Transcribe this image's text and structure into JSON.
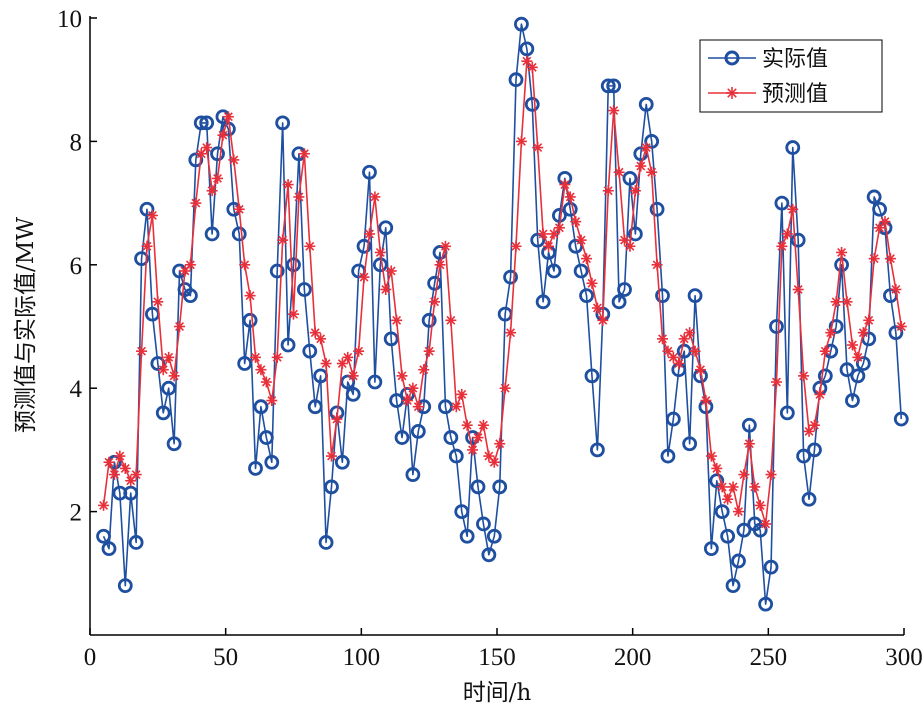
{
  "chart_data": {
    "type": "line",
    "xlabel": "时间/h",
    "ylabel": "预测值与实际值/MW",
    "xlim": [
      0,
      300
    ],
    "ylim": [
      0,
      10
    ],
    "xticks": [
      0,
      50,
      100,
      150,
      200,
      250,
      300
    ],
    "yticks": [
      2,
      4,
      6,
      8,
      10
    ],
    "grid": false,
    "legend_position": "top-right",
    "colors": {
      "actual": "#1f4fa0",
      "predicted": "#e8303a",
      "axis": "#000000"
    },
    "series": [
      {
        "name": "实际值",
        "marker": "circle",
        "x": [
          5,
          7,
          9,
          11,
          13,
          15,
          17,
          19,
          21,
          23,
          25,
          27,
          29,
          31,
          33,
          35,
          37,
          39,
          41,
          43,
          45,
          47,
          49,
          51,
          53,
          55,
          57,
          59,
          61,
          63,
          65,
          67,
          69,
          71,
          73,
          75,
          77,
          79,
          81,
          83,
          85,
          87,
          89,
          91,
          93,
          95,
          97,
          99,
          101,
          103,
          105,
          107,
          109,
          111,
          113,
          115,
          117,
          119,
          121,
          123,
          125,
          127,
          129,
          131,
          133,
          135,
          137,
          139,
          141,
          143,
          145,
          147,
          149,
          151,
          153,
          155,
          157,
          159,
          161,
          163,
          165,
          167,
          169,
          171,
          173,
          175,
          177,
          179,
          181,
          183,
          185,
          187,
          189,
          191,
          193,
          195,
          197,
          199,
          201,
          203,
          205,
          207,
          209,
          211,
          213,
          215,
          217,
          219,
          221,
          223,
          225,
          227,
          229,
          231,
          233,
          235,
          237,
          239,
          241,
          243,
          245,
          247,
          249,
          251,
          253,
          255,
          257,
          259,
          261,
          263,
          265,
          267,
          269,
          271,
          273,
          275,
          277,
          279,
          281,
          283,
          285,
          287,
          289,
          291,
          293,
          295,
          297,
          299
        ],
        "y": [
          1.6,
          1.4,
          2.8,
          2.3,
          0.8,
          2.3,
          1.5,
          6.1,
          6.9,
          5.2,
          4.4,
          3.6,
          4.0,
          3.1,
          5.9,
          5.6,
          5.5,
          7.7,
          8.3,
          8.3,
          6.5,
          7.8,
          8.4,
          8.2,
          6.9,
          6.5,
          4.4,
          5.1,
          2.7,
          3.7,
          3.2,
          2.8,
          5.9,
          8.3,
          4.7,
          6.0,
          7.8,
          5.6,
          4.6,
          3.7,
          4.2,
          1.5,
          2.4,
          3.6,
          2.8,
          4.1,
          3.9,
          5.9,
          6.3,
          7.5,
          4.1,
          6.0,
          6.6,
          4.8,
          3.8,
          3.2,
          3.9,
          2.6,
          3.3,
          3.7,
          5.1,
          5.7,
          6.2,
          3.7,
          3.2,
          2.9,
          2.0,
          1.6,
          3.2,
          2.4,
          1.8,
          1.3,
          1.6,
          2.4,
          5.2,
          5.8,
          9.0,
          9.9,
          9.5,
          8.6,
          6.4,
          5.4,
          6.2,
          5.9,
          6.8,
          7.4,
          6.9,
          6.3,
          5.9,
          5.5,
          4.2,
          3.0,
          5.2,
          8.9,
          8.9,
          5.4,
          5.6,
          7.4,
          6.5,
          7.8,
          8.6,
          8.0,
          6.9,
          5.5,
          2.9,
          3.5,
          4.3,
          4.6,
          3.1,
          5.5,
          4.2,
          3.7,
          1.4,
          2.5,
          2.0,
          1.6,
          0.8,
          1.2,
          1.7,
          3.4,
          1.8,
          1.7,
          0.5,
          1.1,
          5.0,
          7.0,
          3.6,
          7.9,
          6.4,
          2.9,
          2.2,
          3.0,
          4.0,
          4.2,
          4.6,
          5.0,
          6.0,
          4.3,
          3.8,
          4.2,
          4.4,
          4.8,
          7.1,
          6.9,
          6.6,
          5.5,
          4.9,
          3.5
        ]
      },
      {
        "name": "预测值",
        "marker": "asterisk",
        "x": [
          5,
          7,
          9,
          11,
          13,
          15,
          17,
          19,
          21,
          23,
          25,
          27,
          29,
          31,
          33,
          35,
          37,
          39,
          41,
          43,
          45,
          47,
          49,
          51,
          53,
          55,
          57,
          59,
          61,
          63,
          65,
          67,
          69,
          71,
          73,
          75,
          77,
          79,
          81,
          83,
          85,
          87,
          89,
          91,
          93,
          95,
          97,
          99,
          101,
          103,
          105,
          107,
          109,
          111,
          113,
          115,
          117,
          119,
          121,
          123,
          125,
          127,
          129,
          131,
          133,
          135,
          137,
          139,
          141,
          143,
          145,
          147,
          149,
          151,
          153,
          155,
          157,
          159,
          161,
          163,
          165,
          167,
          169,
          171,
          173,
          175,
          177,
          179,
          181,
          183,
          185,
          187,
          189,
          191,
          193,
          195,
          197,
          199,
          201,
          203,
          205,
          207,
          209,
          211,
          213,
          215,
          217,
          219,
          221,
          223,
          225,
          227,
          229,
          231,
          233,
          235,
          237,
          239,
          241,
          243,
          245,
          247,
          249,
          251,
          253,
          255,
          257,
          259,
          261,
          263,
          265,
          267,
          269,
          271,
          273,
          275,
          277,
          279,
          281,
          283,
          285,
          287,
          289,
          291,
          293,
          295,
          297,
          299
        ],
        "y": [
          2.1,
          2.8,
          2.6,
          2.9,
          2.7,
          2.5,
          2.6,
          4.6,
          6.3,
          6.8,
          5.4,
          4.3,
          4.5,
          4.2,
          5.0,
          5.9,
          6.0,
          7.0,
          7.8,
          7.9,
          7.2,
          7.4,
          8.1,
          8.4,
          7.7,
          6.9,
          6.0,
          5.5,
          4.5,
          4.3,
          4.1,
          3.8,
          4.5,
          6.4,
          7.3,
          5.2,
          7.1,
          7.8,
          6.3,
          4.9,
          4.8,
          4.4,
          2.9,
          3.5,
          4.4,
          4.5,
          4.2,
          4.6,
          5.8,
          6.5,
          7.1,
          6.2,
          5.6,
          5.9,
          5.1,
          4.2,
          3.8,
          4.0,
          3.7,
          4.3,
          4.6,
          5.4,
          6.0,
          6.3,
          5.1,
          3.7,
          3.9,
          3.4,
          3.0,
          3.2,
          3.4,
          2.9,
          2.8,
          3.1,
          4.0,
          4.9,
          6.3,
          8.0,
          9.3,
          9.2,
          7.9,
          6.5,
          6.3,
          6.5,
          6.6,
          7.3,
          7.1,
          6.7,
          6.4,
          6.1,
          5.7,
          5.3,
          5.1,
          7.2,
          8.5,
          7.5,
          6.4,
          6.3,
          7.2,
          7.6,
          7.9,
          7.5,
          6.0,
          4.8,
          4.6,
          4.5,
          4.4,
          4.8,
          4.9,
          4.6,
          4.3,
          3.8,
          2.9,
          2.7,
          2.4,
          2.2,
          2.4,
          2.0,
          2.6,
          3.1,
          2.4,
          2.1,
          1.8,
          2.6,
          4.1,
          6.3,
          6.5,
          6.9,
          5.6,
          4.2,
          3.3,
          3.4,
          3.9,
          4.6,
          4.9,
          5.4,
          6.2,
          5.4,
          4.7,
          4.5,
          4.9,
          5.1,
          6.1,
          6.6,
          6.7,
          6.1,
          5.6,
          5.0
        ]
      }
    ]
  }
}
